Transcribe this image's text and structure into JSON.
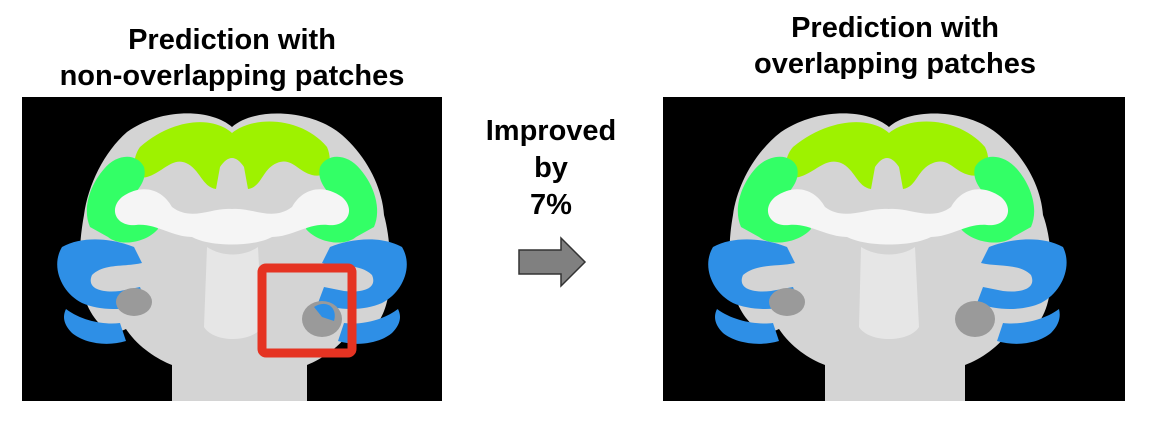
{
  "left_panel": {
    "title_line1": "Prediction with",
    "title_line2": "non-overlapping patches"
  },
  "right_panel": {
    "title_line1": "Prediction with",
    "title_line2": "overlapping patches"
  },
  "comparison": {
    "line1": "Improved",
    "line2": "by",
    "line3": "7%"
  },
  "colors": {
    "background": "#000000",
    "brain_tissue": "#d9d9d9",
    "white_matter": "#f5f5f5",
    "label_yellow_green": "#9ef200",
    "label_green": "#33ff66",
    "label_blue": "#2e8fe6",
    "highlight_box": "#e53322",
    "arrow": "#808080"
  }
}
